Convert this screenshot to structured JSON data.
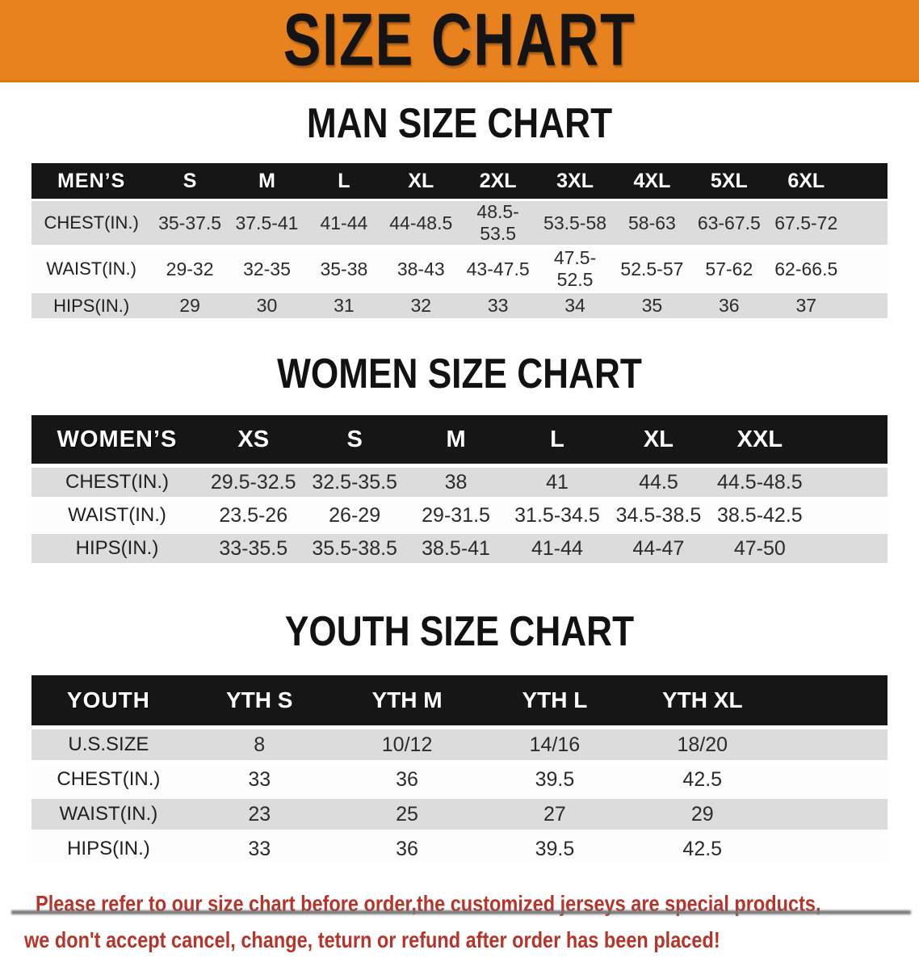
{
  "banner": {
    "title": "SIZE CHART"
  },
  "colors": {
    "banner_bg": "#E8821E",
    "header_bar_bg": "#161616",
    "row_gray_bg": "#DCDCDC",
    "row_white_bg": "#FDFDFD",
    "disclaimer_text": "#B5352B"
  },
  "sections": [
    {
      "heading": "MAN SIZE CHART",
      "table_label": "MEN’S",
      "columns": [
        "S",
        "M",
        "L",
        "XL",
        "2XL",
        "3XL",
        "4XL",
        "5XL",
        "6XL"
      ],
      "rows": [
        {
          "label": "CHEST(IN.)",
          "values": [
            "35-37.5",
            "37.5-41",
            "41-44",
            "44-48.5",
            "48.5-53.5",
            "53.5-58",
            "58-63",
            "63-67.5",
            "67.5-72"
          ]
        },
        {
          "label": "WAIST(IN.)",
          "values": [
            "29-32",
            "32-35",
            "35-38",
            "38-43",
            "43-47.5",
            "47.5-52.5",
            "52.5-57",
            "57-62",
            "62-66.5"
          ]
        },
        {
          "label": "HIPS(IN.)",
          "values": [
            "29",
            "30",
            "31",
            "32",
            "33",
            "34",
            "35",
            "36",
            "37"
          ]
        }
      ]
    },
    {
      "heading": "WOMEN SIZE CHART",
      "table_label": "WOMEN’S",
      "columns": [
        "XS",
        "S",
        "M",
        "L",
        "XL",
        "XXL"
      ],
      "rows": [
        {
          "label": "CHEST(IN.)",
          "values": [
            "29.5-32.5",
            "32.5-35.5",
            "38",
            "41",
            "44.5",
            "44.5-48.5"
          ]
        },
        {
          "label": "WAIST(IN.)",
          "values": [
            "23.5-26",
            "26-29",
            "29-31.5",
            "31.5-34.5",
            "34.5-38.5",
            "38.5-42.5"
          ]
        },
        {
          "label": "HIPS(IN.)",
          "values": [
            "33-35.5",
            "35.5-38.5",
            "38.5-41",
            "41-44",
            "44-47",
            "47-50"
          ]
        }
      ]
    },
    {
      "heading": "YOUTH SIZE CHART",
      "table_label": "YOUTH",
      "columns": [
        "YTH S",
        "YTH M",
        "YTH L",
        "YTH XL"
      ],
      "rows": [
        {
          "label": "U.S.SIZE",
          "values": [
            "8",
            "10/12",
            "14/16",
            "18/20"
          ]
        },
        {
          "label": "CHEST(IN.)",
          "values": [
            "33",
            "36",
            "39.5",
            "42.5"
          ]
        },
        {
          "label": "WAIST(IN.)",
          "values": [
            "23",
            "25",
            "27",
            "29"
          ]
        },
        {
          "label": "HIPS(IN.)",
          "values": [
            "33",
            "36",
            "39.5",
            "42.5"
          ]
        }
      ]
    }
  ],
  "footer": {
    "line1": "Please refer to our size chart before order,the customized jerseys are special products,",
    "line2": "we don't accept cancel, change, teturn or refund after order has been placed!"
  }
}
